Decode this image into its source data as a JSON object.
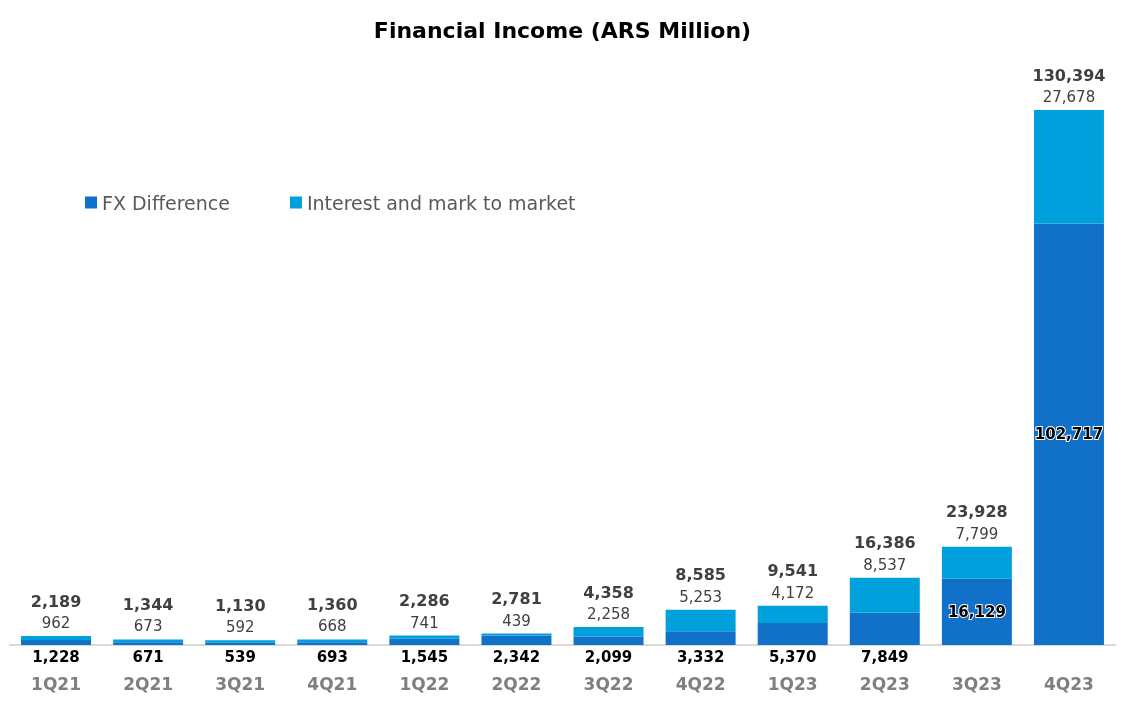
{
  "chart_data": {
    "type": "bar",
    "title": "Financial Income (ARS Million)",
    "categories": [
      "1Q21",
      "2Q21",
      "3Q21",
      "4Q21",
      "1Q22",
      "2Q22",
      "3Q22",
      "4Q22",
      "1Q23",
      "2Q23",
      "3Q23",
      "4Q23"
    ],
    "series": [
      {
        "name": "FX Difference",
        "color": "#1170c8",
        "values": [
          1228,
          671,
          539,
          693,
          1545,
          2342,
          2099,
          3332,
          5370,
          7849,
          16129,
          102717
        ],
        "value_labels": [
          "1,228",
          "671",
          "539",
          "693",
          "1,545",
          "2,342",
          "2,099",
          "3,332",
          "5,370",
          "7,849",
          "16,129",
          "102,717"
        ]
      },
      {
        "name": "Interest and mark to market",
        "color": "#00a0dc",
        "values": [
          962,
          673,
          592,
          668,
          741,
          439,
          2258,
          5253,
          4172,
          8537,
          7799,
          27678
        ],
        "value_labels": [
          "962",
          "673",
          "592",
          "668",
          "741",
          "439",
          "2,258",
          "5,253",
          "4,172",
          "8,537",
          "7,799",
          "27,678"
        ]
      }
    ],
    "stacked": true,
    "totals": [
      "2,189",
      "1,344",
      "1,130",
      "1,360",
      "2,286",
      "2,781",
      "4,358",
      "8,585",
      "9,541",
      "16,386",
      "23,928",
      "130,394"
    ],
    "legend": "top left"
  }
}
